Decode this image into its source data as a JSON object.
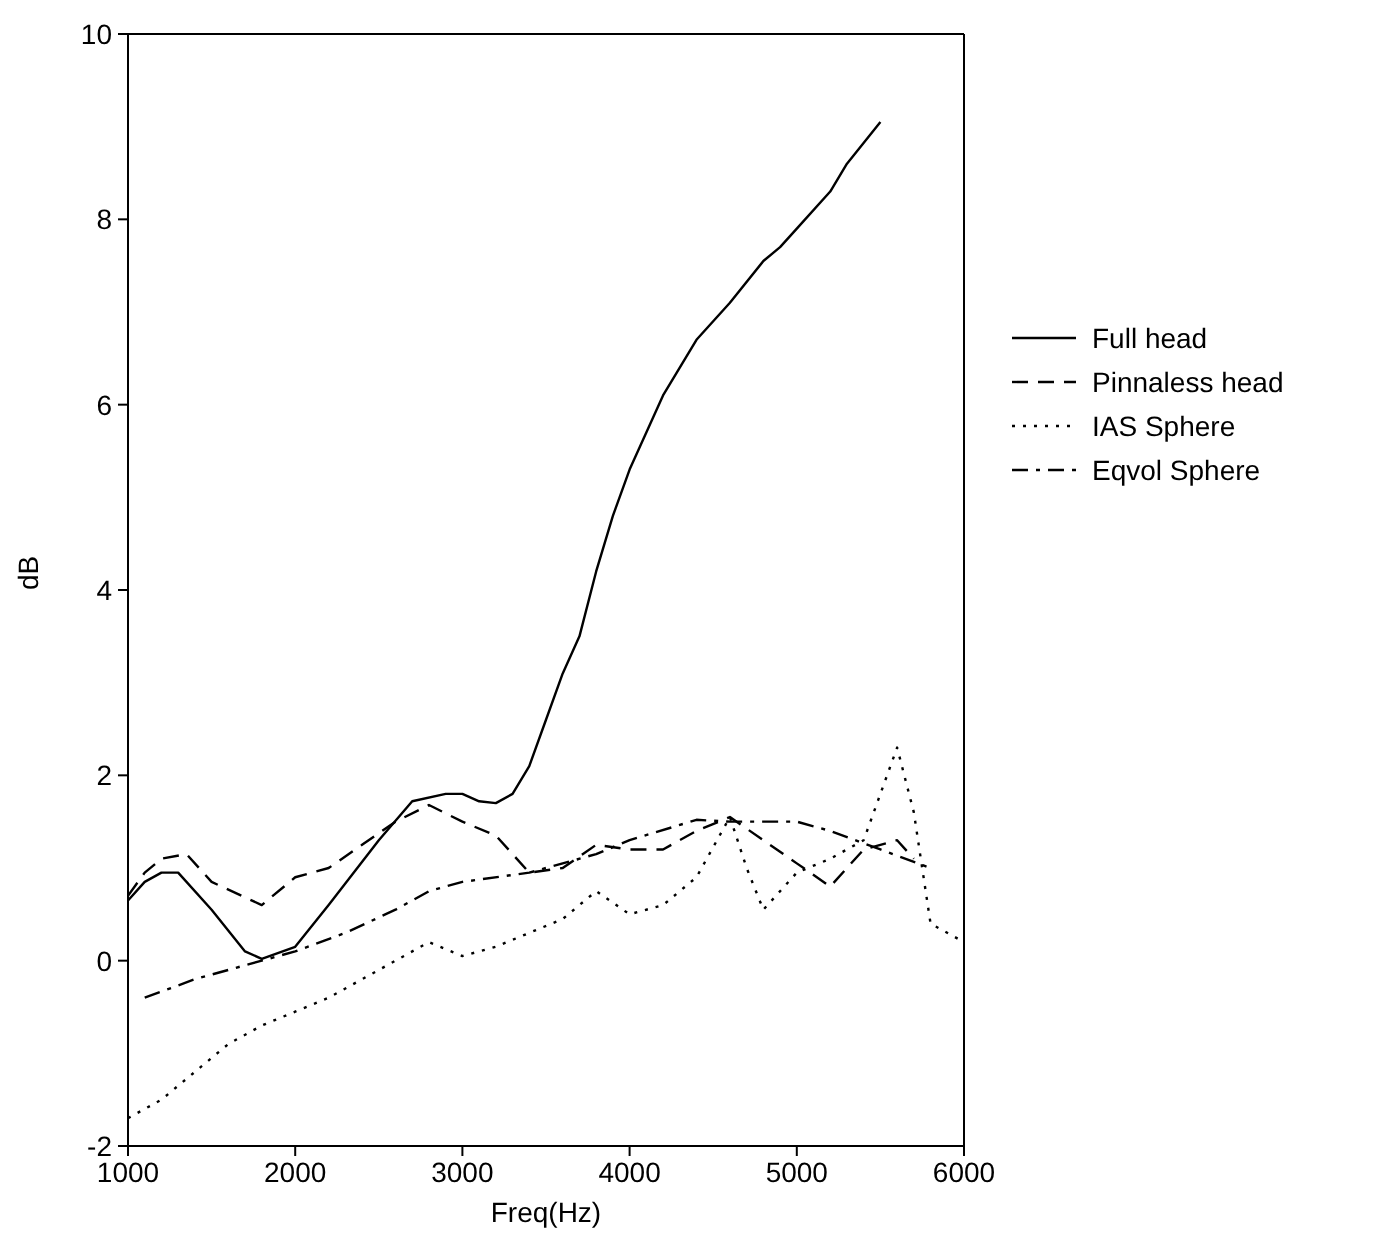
{
  "chart_data": {
    "type": "line",
    "xlabel": "Freq(Hz)",
    "ylabel": "dB",
    "xlim": [
      1000,
      6000
    ],
    "xticks": [
      1000,
      2000,
      3000,
      4000,
      5000,
      6000
    ],
    "ylim": [
      -2,
      10
    ],
    "yticks": [
      -2,
      0,
      2,
      4,
      6,
      8,
      10
    ],
    "legend": "right",
    "marker": "none",
    "series": [
      {
        "name": "Full head",
        "color": "#000000",
        "line_style": "solid",
        "x": [
          1000,
          1100,
          1200,
          1300,
          1500,
          1700,
          1800,
          2000,
          2200,
          2500,
          2700,
          2900,
          3000,
          3100,
          3200,
          3300,
          3400,
          3500,
          3600,
          3700,
          3800,
          3900,
          4000,
          4200,
          4400,
          4600,
          4800,
          4900,
          5000,
          5200,
          5300,
          5500
        ],
        "values": [
          0.65,
          0.85,
          0.95,
          0.95,
          0.55,
          0.1,
          0.02,
          0.15,
          0.6,
          1.3,
          1.72,
          1.8,
          1.8,
          1.72,
          1.7,
          1.8,
          2.1,
          2.6,
          3.1,
          3.5,
          4.2,
          4.8,
          5.3,
          6.1,
          6.7,
          7.1,
          7.55,
          7.7,
          7.9,
          8.3,
          8.6,
          9.05
        ]
      },
      {
        "name": "Pinnaless head",
        "color": "#000000",
        "line_style": "dashed",
        "x": [
          1000,
          1100,
          1200,
          1350,
          1500,
          1800,
          2000,
          2200,
          2400,
          2600,
          2800,
          3000,
          3200,
          3400,
          3600,
          3800,
          4000,
          4200,
          4400,
          4600,
          4800,
          5000,
          5200,
          5400,
          5600,
          5700
        ],
        "values": [
          0.7,
          0.95,
          1.1,
          1.15,
          0.85,
          0.6,
          0.9,
          1.0,
          1.25,
          1.5,
          1.68,
          1.5,
          1.35,
          0.95,
          1.0,
          1.25,
          1.2,
          1.2,
          1.4,
          1.55,
          1.3,
          1.05,
          0.8,
          1.2,
          1.3,
          1.1
        ]
      },
      {
        "name": "IAS Sphere",
        "color": "#000000",
        "line_style": "dotted",
        "x": [
          1000,
          1200,
          1400,
          1600,
          1800,
          2000,
          2200,
          2400,
          2600,
          2800,
          3000,
          3200,
          3400,
          3600,
          3800,
          4000,
          4200,
          4400,
          4600,
          4700,
          4800,
          5000,
          5200,
          5400,
          5500,
          5600,
          5700,
          5800,
          6000
        ],
        "values": [
          -1.7,
          -1.5,
          -1.2,
          -0.9,
          -0.7,
          -0.55,
          -0.4,
          -0.2,
          0.0,
          0.2,
          0.05,
          0.15,
          0.3,
          0.45,
          0.75,
          0.5,
          0.6,
          0.9,
          1.55,
          1.0,
          0.55,
          0.95,
          1.1,
          1.3,
          1.8,
          2.3,
          1.6,
          0.4,
          0.2
        ]
      },
      {
        "name": "Eqvol Sphere",
        "color": "#000000",
        "line_style": "dashdot",
        "x": [
          1100,
          1400,
          1800,
          2000,
          2300,
          2600,
          2800,
          3000,
          3400,
          3800,
          4000,
          4400,
          4600,
          5000,
          5200,
          5500,
          5800
        ],
        "values": [
          -0.4,
          -0.2,
          0.0,
          0.1,
          0.3,
          0.55,
          0.75,
          0.85,
          0.95,
          1.15,
          1.3,
          1.52,
          1.5,
          1.5,
          1.4,
          1.2,
          1.0
        ]
      }
    ]
  }
}
